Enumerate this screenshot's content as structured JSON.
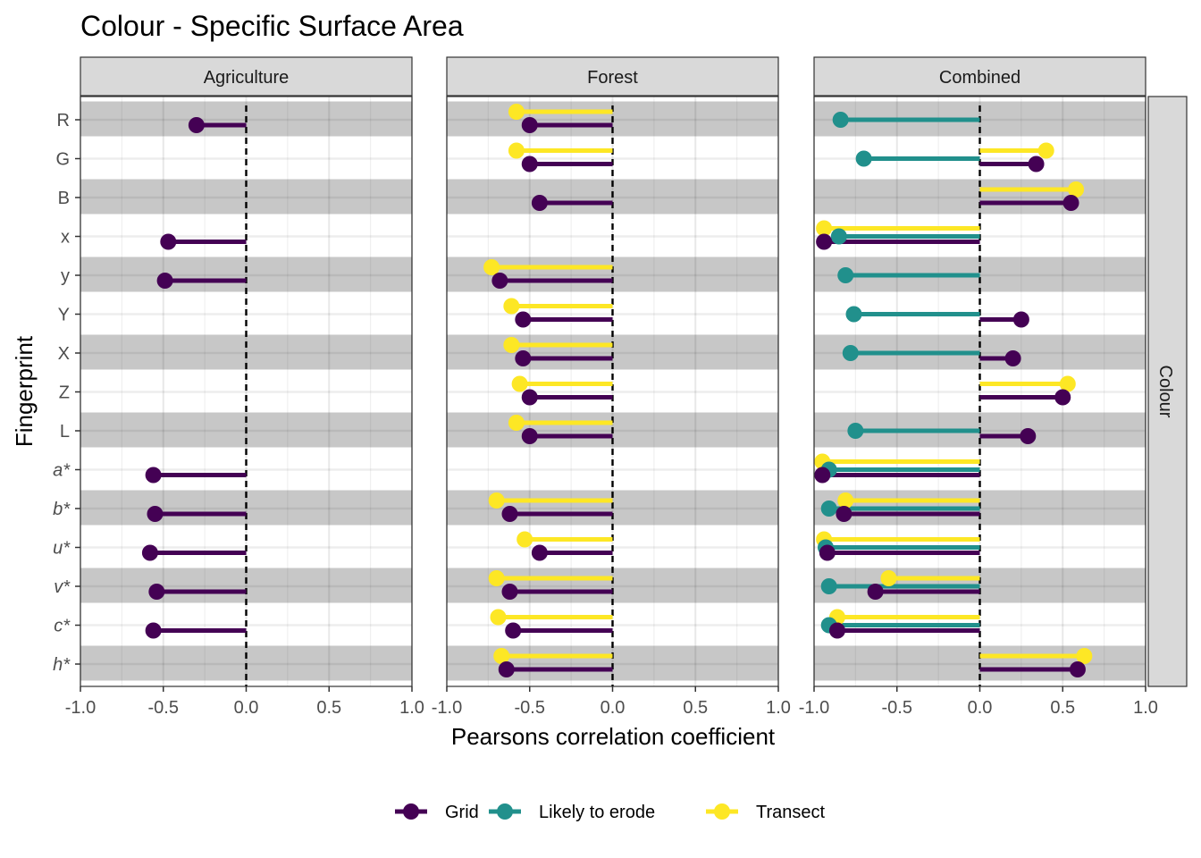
{
  "chart_data": {
    "type": "lollipop",
    "title": "Colour - Specific Surface Area",
    "xlabel": "Pearsons correlation coefficient",
    "ylabel": "Fingerprint",
    "xlim": [
      -1.0,
      1.0
    ],
    "x_ticks": [
      "-1.0",
      "-0.5",
      "0.0",
      "0.5",
      "1.0"
    ],
    "x_tick_values": [
      -1.0,
      -0.5,
      0.0,
      0.5,
      1.0
    ],
    "grid": true,
    "row_strip": "Colour",
    "legend_position": "bottom",
    "categories": [
      {
        "label": "R",
        "italic": false
      },
      {
        "label": "G",
        "italic": false
      },
      {
        "label": "B",
        "italic": false
      },
      {
        "label": "x",
        "italic": false
      },
      {
        "label": "y",
        "italic": false
      },
      {
        "label": "Y",
        "italic": false
      },
      {
        "label": "X",
        "italic": false
      },
      {
        "label": "Z",
        "italic": false
      },
      {
        "label": "L",
        "italic": false
      },
      {
        "label": "a*",
        "italic": true
      },
      {
        "label": "b*",
        "italic": true
      },
      {
        "label": "u*",
        "italic": true
      },
      {
        "label": "v*",
        "italic": true
      },
      {
        "label": "c*",
        "italic": true
      },
      {
        "label": "h*",
        "italic": true
      }
    ],
    "series": [
      {
        "name": "Grid",
        "color": "#440154"
      },
      {
        "name": "Likely to erode",
        "color": "#21908C"
      },
      {
        "name": "Transect",
        "color": "#FDE725"
      }
    ],
    "panels": [
      {
        "name": "Agriculture",
        "values": {
          "Grid": [
            -0.3,
            null,
            null,
            -0.47,
            -0.49,
            null,
            null,
            null,
            null,
            -0.56,
            -0.55,
            -0.58,
            -0.54,
            -0.56,
            null
          ],
          "Likely to erode": [
            null,
            null,
            null,
            null,
            null,
            null,
            null,
            null,
            null,
            null,
            null,
            null,
            null,
            null,
            null
          ],
          "Transect": [
            null,
            null,
            null,
            null,
            null,
            null,
            null,
            null,
            null,
            null,
            null,
            null,
            null,
            null,
            null
          ]
        }
      },
      {
        "name": "Forest",
        "values": {
          "Grid": [
            -0.5,
            -0.5,
            -0.44,
            null,
            -0.68,
            -0.54,
            -0.54,
            -0.5,
            -0.5,
            null,
            -0.62,
            -0.44,
            -0.62,
            -0.6,
            -0.64
          ],
          "Likely to erode": [
            null,
            null,
            null,
            null,
            null,
            null,
            null,
            null,
            null,
            null,
            null,
            null,
            null,
            null,
            null
          ],
          "Transect": [
            -0.58,
            -0.58,
            null,
            null,
            -0.73,
            -0.61,
            -0.61,
            -0.56,
            -0.58,
            null,
            -0.7,
            -0.53,
            -0.7,
            -0.69,
            -0.67
          ]
        }
      },
      {
        "name": "Combined",
        "values": {
          "Grid": [
            null,
            0.34,
            0.55,
            -0.94,
            null,
            0.25,
            0.2,
            0.5,
            0.29,
            -0.95,
            -0.82,
            -0.92,
            -0.63,
            -0.86,
            0.59
          ],
          "Likely to erode": [
            -0.84,
            -0.7,
            null,
            -0.85,
            -0.81,
            -0.76,
            -0.78,
            null,
            -0.75,
            -0.91,
            -0.91,
            -0.93,
            -0.91,
            -0.91,
            null
          ],
          "Transect": [
            null,
            0.4,
            0.58,
            -0.94,
            null,
            null,
            null,
            0.53,
            null,
            -0.95,
            -0.81,
            -0.94,
            -0.55,
            -0.86,
            0.63
          ]
        }
      }
    ]
  }
}
